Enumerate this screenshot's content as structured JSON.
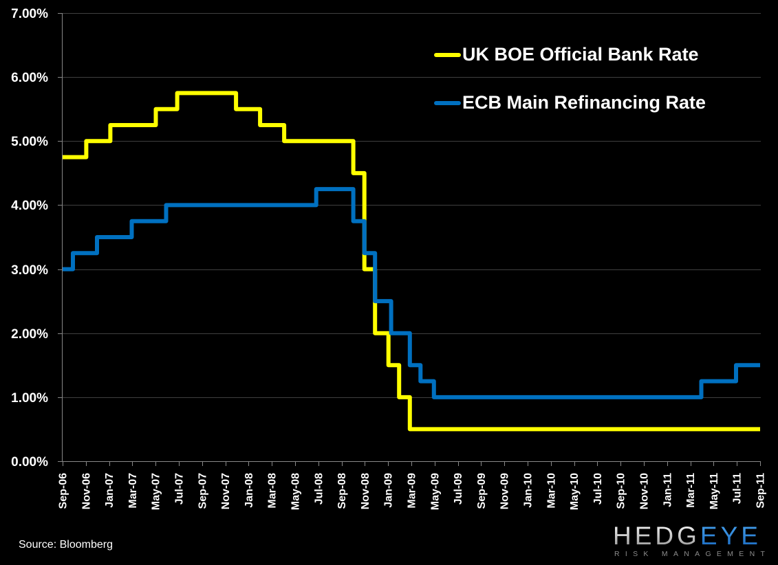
{
  "chart_data": {
    "type": "line",
    "subtype": "step",
    "title": "",
    "xlabel": "",
    "ylabel": "",
    "ylim": [
      0,
      7
    ],
    "yticks": [
      "0.00%",
      "1.00%",
      "2.00%",
      "3.00%",
      "4.00%",
      "5.00%",
      "6.00%",
      "7.00%"
    ],
    "grid": true,
    "legend_position": "upper right, inside plot area",
    "x_start": "2006-09-08",
    "x_end": "2011-09-08",
    "categories": [
      "Sep-06",
      "Nov-06",
      "Jan-07",
      "Mar-07",
      "May-07",
      "Jul-07",
      "Sep-07",
      "Nov-07",
      "Jan-08",
      "Mar-08",
      "May-08",
      "Jul-08",
      "Sep-08",
      "Nov-08",
      "Jan-09",
      "Mar-09",
      "May-09",
      "Jul-09",
      "Sep-09",
      "Nov-09",
      "Jan-10",
      "Mar-10",
      "May-10",
      "Jul-10",
      "Sep-10",
      "Nov-10",
      "Jan-11",
      "Mar-11",
      "May-11",
      "Jul-11",
      "Sep-11"
    ],
    "series": [
      {
        "name": "UK BOE Official Bank Rate",
        "color": "#FFFF00",
        "values": [
          4.75,
          5.0,
          5.25,
          5.25,
          5.5,
          5.75,
          5.75,
          5.75,
          5.5,
          5.25,
          5.0,
          5.0,
          5.0,
          3.0,
          1.5,
          0.5,
          0.5,
          0.5,
          0.5,
          0.5,
          0.5,
          0.5,
          0.5,
          0.5,
          0.5,
          0.5,
          0.5,
          0.5,
          0.5,
          0.5,
          0.5
        ],
        "steps": [
          {
            "date": "2006-09-08",
            "value": 4.75
          },
          {
            "date": "2006-11-09",
            "value": 5.0
          },
          {
            "date": "2007-01-11",
            "value": 5.25
          },
          {
            "date": "2007-05-10",
            "value": 5.5
          },
          {
            "date": "2007-07-05",
            "value": 5.75
          },
          {
            "date": "2007-12-06",
            "value": 5.5
          },
          {
            "date": "2008-02-07",
            "value": 5.25
          },
          {
            "date": "2008-04-10",
            "value": 5.0
          },
          {
            "date": "2008-10-08",
            "value": 4.5
          },
          {
            "date": "2008-11-06",
            "value": 3.0
          },
          {
            "date": "2008-12-04",
            "value": 2.0
          },
          {
            "date": "2009-01-08",
            "value": 1.5
          },
          {
            "date": "2009-02-05",
            "value": 1.0
          },
          {
            "date": "2009-03-05",
            "value": 0.5
          }
        ]
      },
      {
        "name": "ECB Main Refinancing Rate",
        "color": "#0070C0",
        "values": [
          3.0,
          3.25,
          3.5,
          3.75,
          3.75,
          4.0,
          4.0,
          4.0,
          4.0,
          4.0,
          4.0,
          4.25,
          4.25,
          3.25,
          2.0,
          1.5,
          1.0,
          1.0,
          1.0,
          1.0,
          1.0,
          1.0,
          1.0,
          1.0,
          1.0,
          1.0,
          1.0,
          1.0,
          1.25,
          1.5,
          1.5
        ],
        "steps": [
          {
            "date": "2006-09-08",
            "value": 3.0
          },
          {
            "date": "2006-10-05",
            "value": 3.25
          },
          {
            "date": "2006-12-07",
            "value": 3.5
          },
          {
            "date": "2007-03-08",
            "value": 3.75
          },
          {
            "date": "2007-06-06",
            "value": 4.0
          },
          {
            "date": "2008-07-03",
            "value": 4.25
          },
          {
            "date": "2008-10-08",
            "value": 3.75
          },
          {
            "date": "2008-11-06",
            "value": 3.25
          },
          {
            "date": "2008-12-04",
            "value": 2.5
          },
          {
            "date": "2009-01-15",
            "value": 2.0
          },
          {
            "date": "2009-03-05",
            "value": 1.5
          },
          {
            "date": "2009-04-02",
            "value": 1.25
          },
          {
            "date": "2009-05-07",
            "value": 1.0
          },
          {
            "date": "2011-04-07",
            "value": 1.25
          },
          {
            "date": "2011-07-07",
            "value": 1.5
          }
        ]
      }
    ]
  },
  "legend": {
    "items": [
      {
        "label": "UK BOE Official Bank Rate",
        "color": "#FFFF00"
      },
      {
        "label": "ECB Main Refinancing Rate",
        "color": "#0070C0"
      }
    ]
  },
  "footer": {
    "source": "Source: Bloomberg"
  },
  "logo": {
    "word_left": "HEDG",
    "word_right": "EYE",
    "tagline": "RISK MANAGEMENT"
  },
  "colors": {
    "background": "#000000",
    "gridline": "#404040",
    "axis": "#898989",
    "text": "#FFFFFF",
    "logo_blue": "#2A88E0",
    "logo_tagline": "#8C8C8C"
  }
}
